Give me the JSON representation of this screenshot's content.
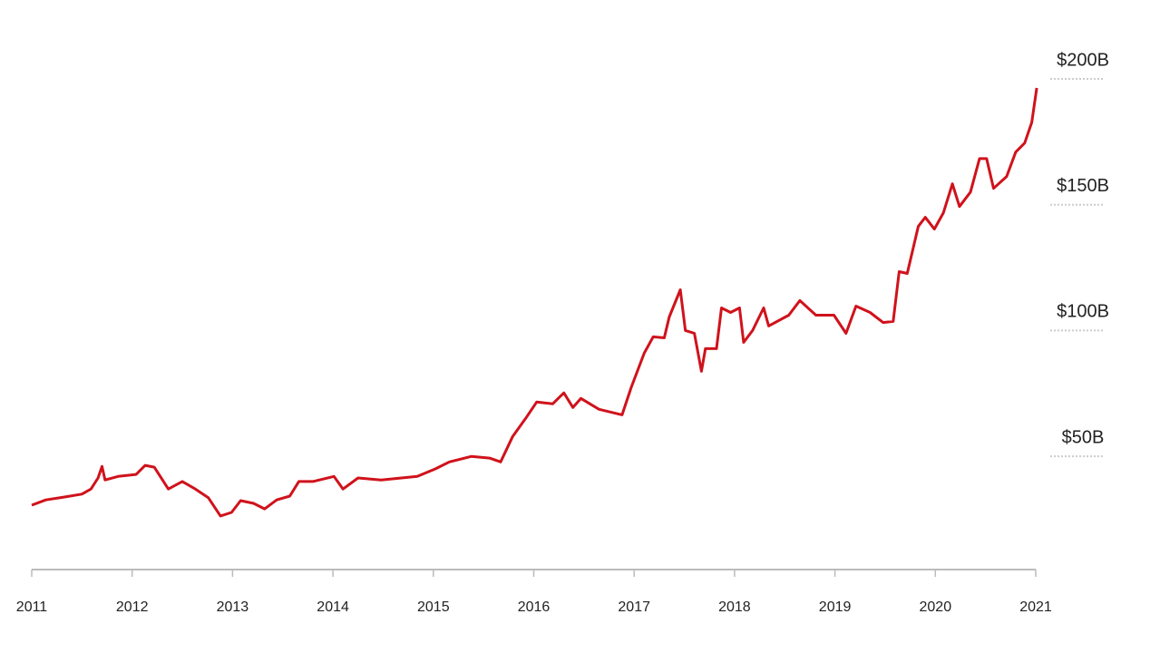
{
  "chart_data": {
    "type": "line",
    "x": [
      2011.0,
      2011.14,
      2011.32,
      2011.5,
      2011.59,
      2011.66,
      2011.7,
      2011.73,
      2011.86,
      2012.04,
      2012.13,
      2012.22,
      2012.36,
      2012.5,
      2012.63,
      2012.76,
      2012.88,
      2012.99,
      2013.08,
      2013.21,
      2013.32,
      2013.44,
      2013.57,
      2013.66,
      2013.8,
      2014.01,
      2014.1,
      2014.25,
      2014.48,
      2014.84,
      2015.02,
      2015.16,
      2015.38,
      2015.56,
      2015.67,
      2015.79,
      2015.92,
      2016.03,
      2016.19,
      2016.3,
      2016.39,
      2016.47,
      2016.65,
      2016.88,
      2016.97,
      2017.1,
      2017.19,
      2017.3,
      2017.35,
      2017.46,
      2017.51,
      2017.6,
      2017.67,
      2017.71,
      2017.82,
      2017.87,
      2017.96,
      2018.05,
      2018.09,
      2018.18,
      2018.29,
      2018.34,
      2018.54,
      2018.65,
      2018.81,
      2018.99,
      2019.11,
      2019.21,
      2019.35,
      2019.48,
      2019.58,
      2019.64,
      2019.72,
      2019.83,
      2019.9,
      2019.99,
      2020.08,
      2020.17,
      2020.24,
      2020.35,
      2020.44,
      2020.51,
      2020.58,
      2020.71,
      2020.8,
      2020.89,
      2020.96,
      2021.01
    ],
    "series": [
      {
        "color": "#d0121b",
        "values": [
          30.6,
          32.7,
          33.8,
          35,
          37,
          41.4,
          46,
          40.6,
          42,
          42.8,
          46.4,
          45.7,
          37,
          40,
          37,
          33.5,
          26.3,
          27.7,
          32.4,
          31.3,
          29.1,
          32.7,
          34.2,
          40,
          40,
          42,
          37,
          41.4,
          40.6,
          42,
          45,
          47.8,
          50,
          49.3,
          47.8,
          57.9,
          65.1,
          71.6,
          70.9,
          75.2,
          69.4,
          73,
          68.7,
          66.5,
          77.3,
          91,
          97.5,
          97.1,
          105.4,
          116.2,
          100,
          98.9,
          83.8,
          92.8,
          92.8,
          109,
          107.2,
          109,
          95.3,
          100,
          109,
          101.8,
          106.1,
          111.9,
          106.1,
          106.1,
          98.9,
          109.7,
          107.2,
          103.2,
          103.6,
          123.4,
          122.7,
          141.4,
          145,
          140.3,
          146.8,
          158.3,
          149.3,
          155,
          168.3,
          168.3,
          156.5,
          161.2,
          170.9,
          174.5,
          182.7,
          196.4
        ]
      }
    ],
    "xlim": [
      2011,
      2021
    ],
    "xticks": [
      2011,
      2012,
      2013,
      2014,
      2015,
      2016,
      2017,
      2018,
      2019,
      2020,
      2021
    ],
    "ylim": [
      5,
      200
    ],
    "yticks": [
      {
        "value": 50,
        "label": "$50B"
      },
      {
        "value": 100,
        "label": "$100B"
      },
      {
        "value": 150,
        "label": "$150B"
      },
      {
        "value": 200,
        "label": "$200B"
      }
    ]
  }
}
